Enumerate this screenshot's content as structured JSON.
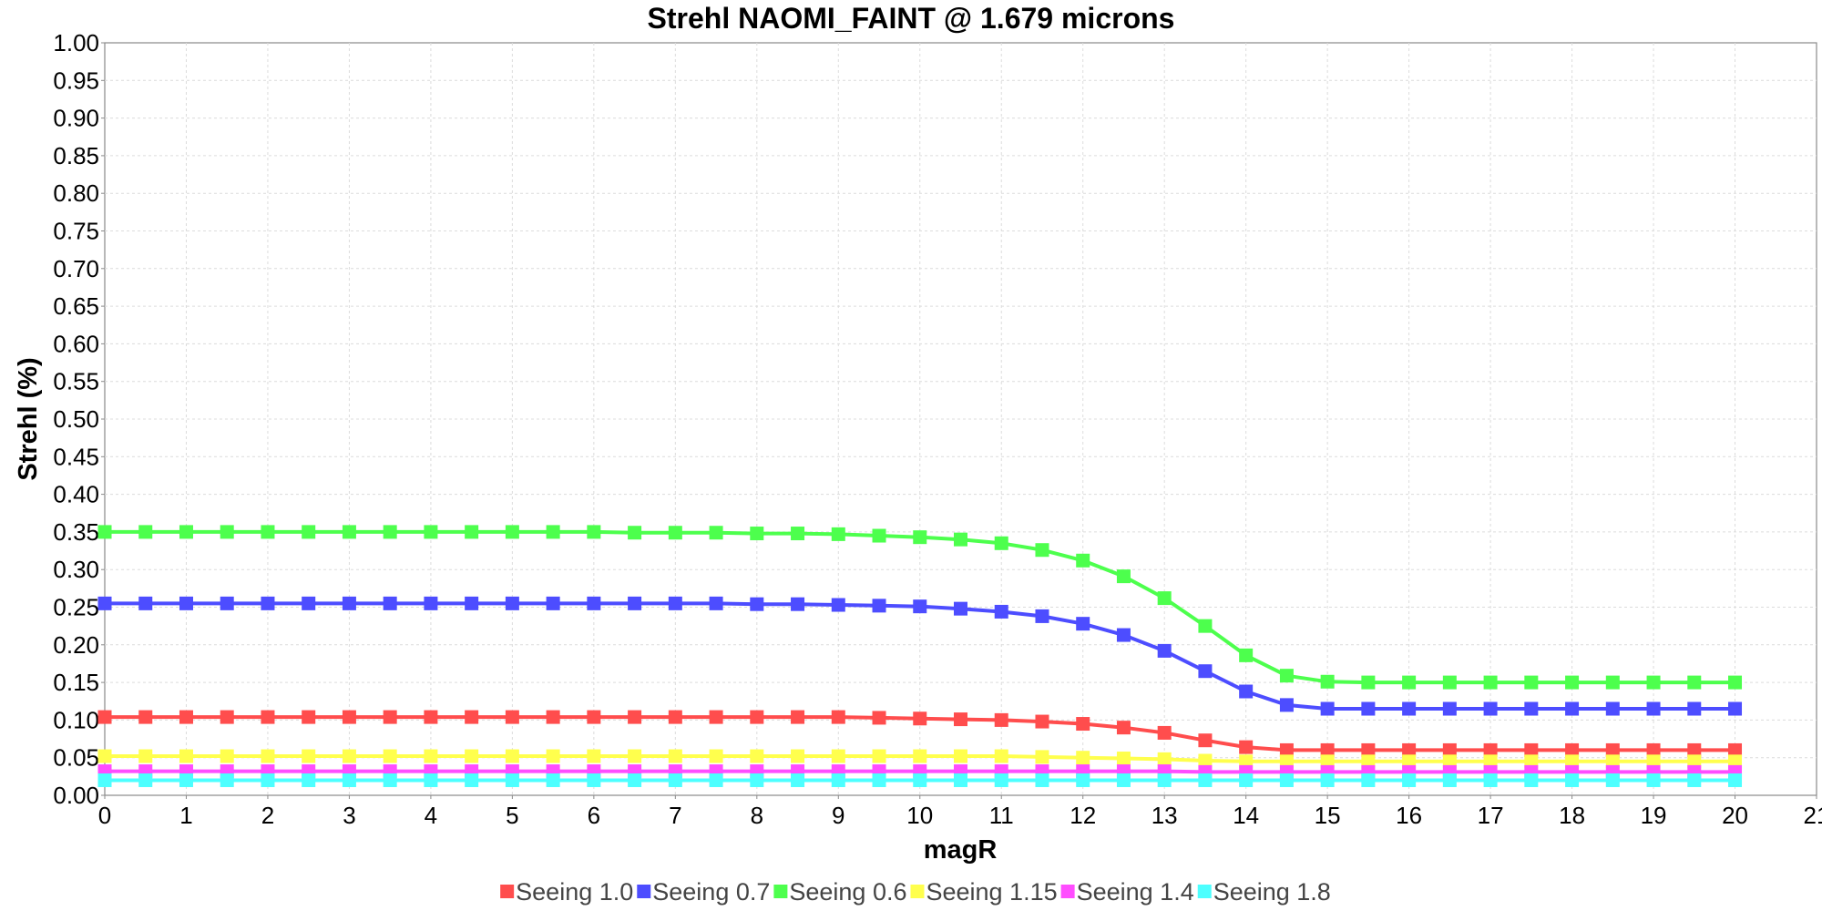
{
  "chart_data": {
    "type": "line",
    "title": "Strehl NAOMI_FAINT @ 1.679 microns",
    "xlabel": "magR",
    "ylabel": "Strehl (%)",
    "xlim": [
      0,
      21
    ],
    "ylim": [
      0,
      1.0
    ],
    "x_ticks": [
      "0",
      "1",
      "2",
      "3",
      "4",
      "5",
      "6",
      "7",
      "8",
      "9",
      "10",
      "11",
      "12",
      "13",
      "14",
      "15",
      "16",
      "17",
      "18",
      "19",
      "20",
      "21"
    ],
    "y_ticks": [
      "0.00",
      "0.05",
      "0.10",
      "0.15",
      "0.20",
      "0.25",
      "0.30",
      "0.35",
      "0.40",
      "0.45",
      "0.50",
      "0.55",
      "0.60",
      "0.65",
      "0.70",
      "0.75",
      "0.80",
      "0.85",
      "0.90",
      "0.95",
      "1.00"
    ],
    "grid": true,
    "legend_position": "bottom",
    "x": [
      0,
      0.5,
      1,
      1.5,
      2,
      2.5,
      3,
      3.5,
      4,
      4.5,
      5,
      5.5,
      6,
      6.5,
      7,
      7.5,
      8,
      8.5,
      9,
      9.5,
      10,
      10.5,
      11,
      11.5,
      12,
      12.5,
      13,
      13.5,
      14,
      14.5,
      15,
      15.5,
      16,
      16.5,
      17,
      17.5,
      18,
      18.5,
      19,
      19.5,
      20
    ],
    "series": [
      {
        "name": "Seeing 1.0",
        "color": "#ff4d4d",
        "values": [
          0.104,
          0.104,
          0.104,
          0.104,
          0.104,
          0.104,
          0.104,
          0.104,
          0.104,
          0.104,
          0.104,
          0.104,
          0.104,
          0.104,
          0.104,
          0.104,
          0.104,
          0.104,
          0.104,
          0.103,
          0.102,
          0.101,
          0.1,
          0.098,
          0.095,
          0.09,
          0.083,
          0.073,
          0.064,
          0.06,
          0.06,
          0.06,
          0.06,
          0.06,
          0.06,
          0.06,
          0.06,
          0.06,
          0.06,
          0.06,
          0.06
        ]
      },
      {
        "name": "Seeing 0.7",
        "color": "#4d4dff",
        "values": [
          0.255,
          0.255,
          0.255,
          0.255,
          0.255,
          0.255,
          0.255,
          0.255,
          0.255,
          0.255,
          0.255,
          0.255,
          0.255,
          0.255,
          0.255,
          0.255,
          0.254,
          0.254,
          0.253,
          0.252,
          0.251,
          0.248,
          0.244,
          0.238,
          0.228,
          0.213,
          0.192,
          0.165,
          0.138,
          0.12,
          0.115,
          0.115,
          0.115,
          0.115,
          0.115,
          0.115,
          0.115,
          0.115,
          0.115,
          0.115,
          0.115
        ]
      },
      {
        "name": "Seeing 0.6",
        "color": "#4dff4d",
        "values": [
          0.35,
          0.35,
          0.35,
          0.35,
          0.35,
          0.35,
          0.35,
          0.35,
          0.35,
          0.35,
          0.35,
          0.35,
          0.35,
          0.349,
          0.349,
          0.349,
          0.348,
          0.348,
          0.347,
          0.345,
          0.343,
          0.34,
          0.335,
          0.326,
          0.312,
          0.291,
          0.262,
          0.225,
          0.186,
          0.159,
          0.151,
          0.15,
          0.15,
          0.15,
          0.15,
          0.15,
          0.15,
          0.15,
          0.15,
          0.15,
          0.15
        ]
      },
      {
        "name": "Seeing 1.15",
        "color": "#ffff4d",
        "values": [
          0.052,
          0.052,
          0.052,
          0.052,
          0.052,
          0.052,
          0.052,
          0.052,
          0.052,
          0.052,
          0.052,
          0.052,
          0.052,
          0.052,
          0.052,
          0.052,
          0.052,
          0.052,
          0.052,
          0.052,
          0.052,
          0.052,
          0.052,
          0.051,
          0.05,
          0.049,
          0.048,
          0.046,
          0.045,
          0.045,
          0.045,
          0.045,
          0.045,
          0.045,
          0.045,
          0.045,
          0.045,
          0.045,
          0.045,
          0.045,
          0.045
        ]
      },
      {
        "name": "Seeing 1.4",
        "color": "#ff4dff",
        "values": [
          0.032,
          0.032,
          0.032,
          0.032,
          0.032,
          0.032,
          0.032,
          0.032,
          0.032,
          0.032,
          0.032,
          0.032,
          0.032,
          0.032,
          0.032,
          0.032,
          0.032,
          0.032,
          0.032,
          0.032,
          0.032,
          0.032,
          0.032,
          0.032,
          0.032,
          0.032,
          0.032,
          0.031,
          0.031,
          0.031,
          0.031,
          0.031,
          0.031,
          0.031,
          0.031,
          0.031,
          0.031,
          0.031,
          0.031,
          0.031,
          0.031
        ]
      },
      {
        "name": "Seeing 1.8",
        "color": "#4dffff",
        "values": [
          0.02,
          0.02,
          0.02,
          0.02,
          0.02,
          0.02,
          0.02,
          0.02,
          0.02,
          0.02,
          0.02,
          0.02,
          0.02,
          0.02,
          0.02,
          0.02,
          0.02,
          0.02,
          0.02,
          0.02,
          0.02,
          0.02,
          0.02,
          0.02,
          0.02,
          0.02,
          0.02,
          0.02,
          0.02,
          0.02,
          0.02,
          0.02,
          0.02,
          0.02,
          0.02,
          0.02,
          0.02,
          0.02,
          0.02,
          0.02,
          0.02
        ]
      }
    ]
  }
}
